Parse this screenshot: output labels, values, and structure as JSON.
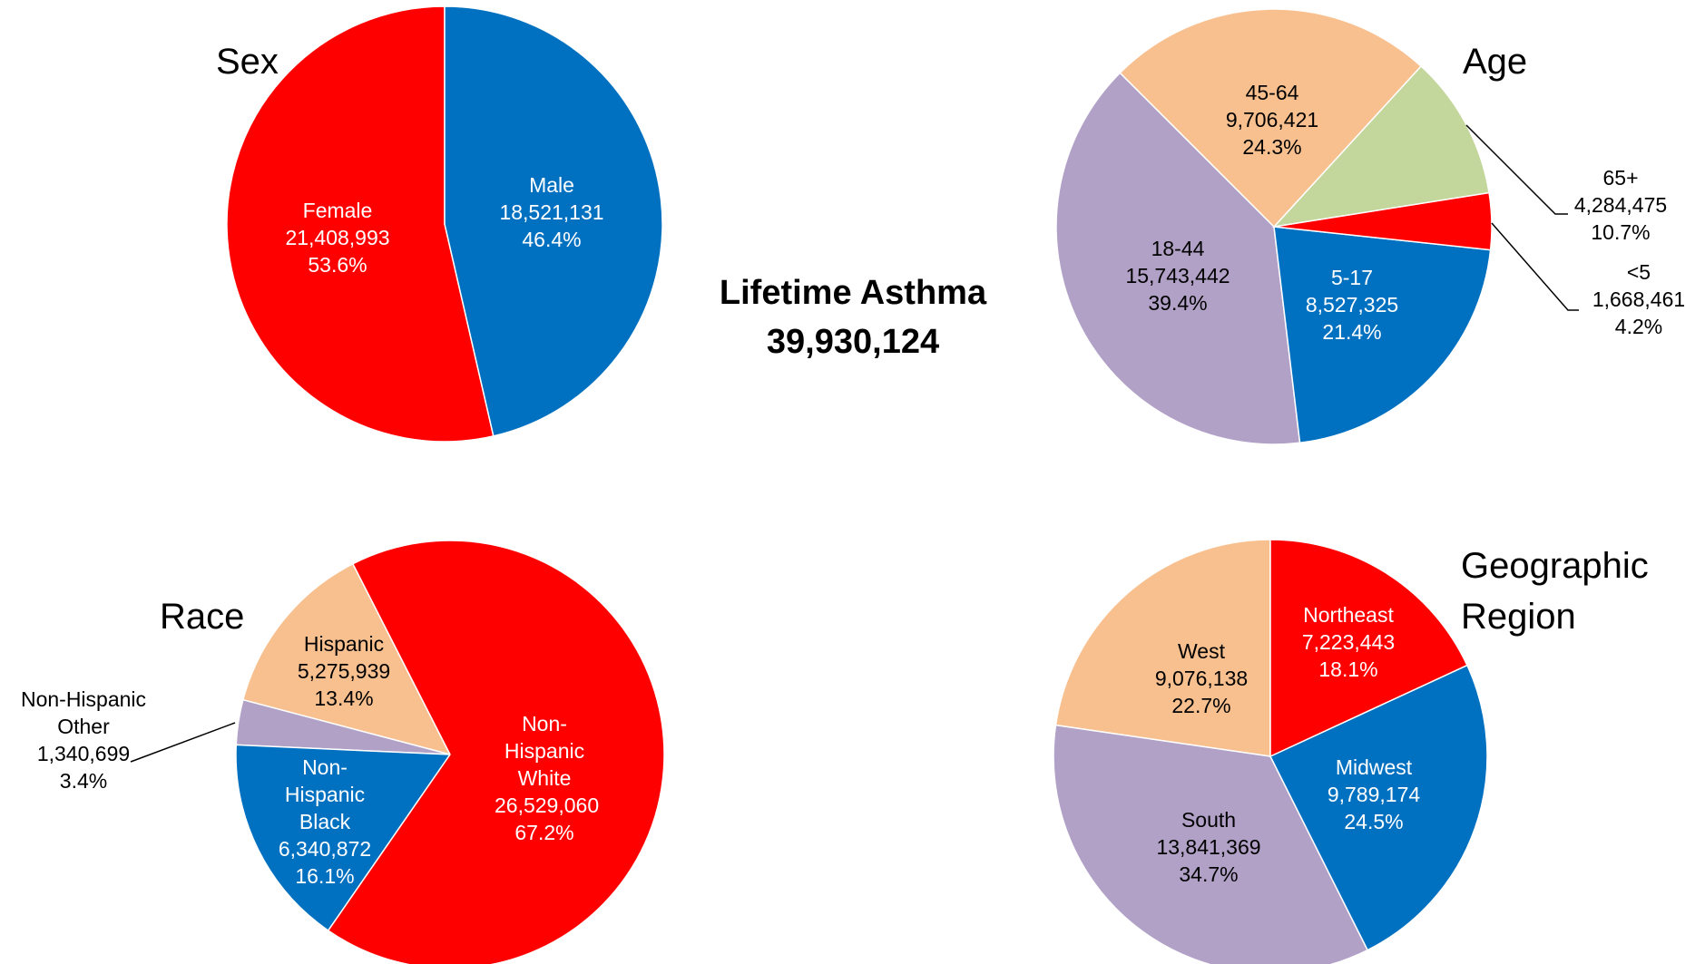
{
  "summary": {
    "title": "Lifetime Asthma",
    "total": "39,930,124"
  },
  "chart_data": [
    {
      "type": "pie",
      "title": "Sex",
      "categories": [
        "Male",
        "Female"
      ],
      "values": [
        46.4,
        53.6
      ],
      "value_labels": [
        "46.4%",
        "53.6%"
      ],
      "counts": [
        18521131,
        21408993
      ],
      "count_labels": [
        "18,521,131",
        "21,408,993"
      ],
      "colors": [
        "#0070c0",
        "#ff0000"
      ]
    },
    {
      "type": "pie",
      "title": "Age",
      "categories": [
        "45-64",
        "65+",
        "<5",
        "5-17",
        "18-44"
      ],
      "values": [
        24.3,
        10.7,
        4.2,
        21.4,
        39.4
      ],
      "value_labels": [
        "24.3%",
        "10.7%",
        "4.2%",
        "21.4%",
        "39.4%"
      ],
      "counts": [
        9706421,
        4284475,
        1668461,
        8527325,
        15743442
      ],
      "count_labels": [
        "9,706,421",
        "4,284,475",
        "1,668,461",
        "8,527,325",
        "15,743,442"
      ],
      "colors": [
        "#f9c08f",
        "#c3d69b",
        "#ff0000",
        "#0070c0",
        "#b2a1c7"
      ]
    },
    {
      "type": "pie",
      "title": "Race",
      "categories": [
        "Non-Hispanic White",
        "Non-Hispanic Black",
        "Non-Hispanic Other",
        "Hispanic"
      ],
      "values": [
        67.2,
        16.1,
        3.4,
        13.4
      ],
      "value_labels": [
        "67.2%",
        "16.1%",
        "3.4%",
        "13.4%"
      ],
      "counts": [
        26529060,
        6340872,
        1340699,
        5275939
      ],
      "count_labels": [
        "26,529,060",
        "6,340,872",
        "1,340,699",
        "5,275,939"
      ],
      "colors": [
        "#ff0000",
        "#0070c0",
        "#b2a1c7",
        "#f9c08f"
      ]
    },
    {
      "type": "pie",
      "title": "Geographic Region",
      "categories": [
        "Northeast",
        "Midwest",
        "South",
        "West"
      ],
      "values": [
        18.1,
        24.5,
        34.7,
        22.7
      ],
      "value_labels": [
        "18.1%",
        "24.5%",
        "34.7%",
        "22.7%"
      ],
      "counts": [
        7223443,
        9789174,
        13841369,
        9076138
      ],
      "count_labels": [
        "7,223,443",
        "9,789,174",
        "13,841,369",
        "9,076,138"
      ],
      "colors": [
        "#ff0000",
        "#0070c0",
        "#b2a1c7",
        "#f9c08f"
      ]
    }
  ]
}
